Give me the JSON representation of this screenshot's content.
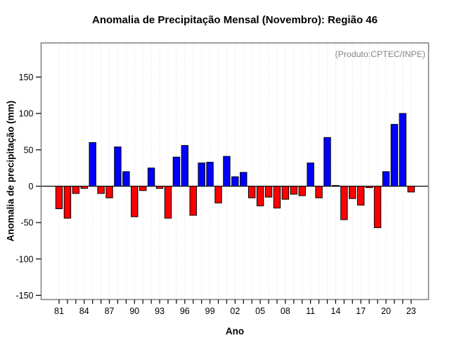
{
  "chart_data": {
    "type": "bar",
    "title": "Anomalia de Precipitação Mensal (Novembro): Região 46",
    "annotation": "(Produto:CPTEC/INPE)",
    "xlabel": "Ano",
    "ylabel": "Anomalia de precipitação (mm)",
    "years": [
      1981,
      1982,
      1983,
      1984,
      1985,
      1986,
      1987,
      1988,
      1989,
      1990,
      1991,
      1992,
      1993,
      1994,
      1995,
      1996,
      1997,
      1998,
      1999,
      2000,
      2001,
      2002,
      2003,
      2004,
      2005,
      2006,
      2007,
      2008,
      2009,
      2010,
      2011,
      2012,
      2013,
      2014,
      2015,
      2016,
      2017,
      2018,
      2019,
      2020,
      2021,
      2022,
      2023
    ],
    "values": [
      -31,
      -44,
      -10,
      -3,
      60,
      -10,
      -16,
      54,
      20,
      -42,
      -6,
      25,
      -3,
      -44,
      40,
      56,
      -40,
      32,
      33,
      -23,
      41,
      13,
      19,
      -16,
      -27,
      -15,
      -30,
      -18,
      -11,
      -13,
      32,
      -16,
      67,
      1,
      -46,
      -17,
      -26,
      -2,
      -57,
      20,
      85,
      100,
      -8
    ],
    "x_tick_labels": [
      "81",
      "84",
      "87",
      "90",
      "93",
      "96",
      "99",
      "02",
      "05",
      "08",
      "11",
      "14",
      "17",
      "20",
      "23"
    ],
    "x_tick_every": 3,
    "yticks": [
      -150,
      -100,
      -50,
      0,
      50,
      100,
      150
    ],
    "ylim": [
      -156,
      197
    ],
    "grid": "vertical-dotted",
    "legend": "none",
    "positive_color": "#0000ff",
    "negative_color": "#ff0000",
    "bar_border_color": "#000000",
    "frame_color": "#858585",
    "gridline_color": "#d8d8d8",
    "annotation_color": "#858585"
  }
}
